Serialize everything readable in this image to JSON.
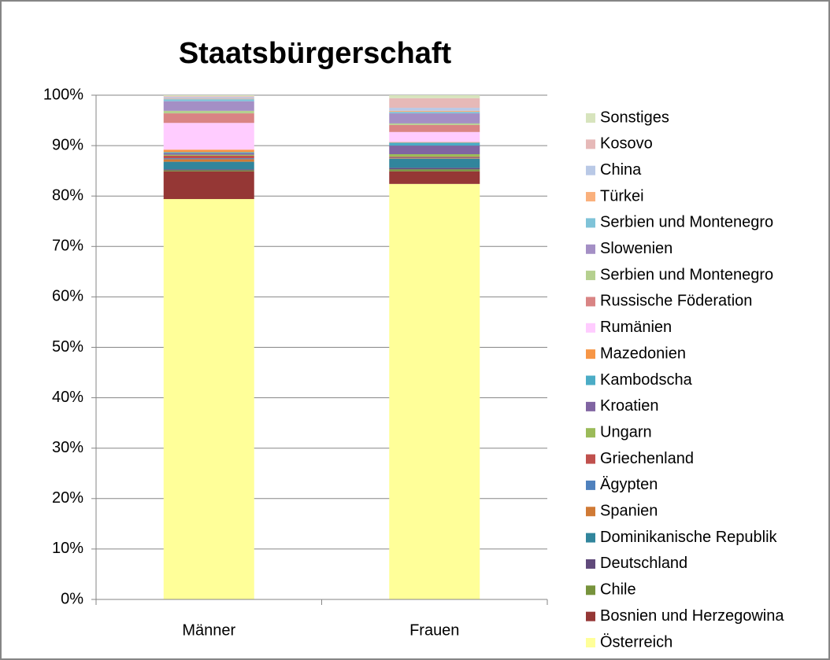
{
  "chart_data": {
    "type": "stacked_bar",
    "title": "Staatsbürgerschaft",
    "categories": [
      "Männer",
      "Frauen"
    ],
    "ylim": [
      0,
      100
    ],
    "yticks": [
      {
        "value": 0,
        "label": "0%"
      },
      {
        "value": 10,
        "label": "10%"
      },
      {
        "value": 20,
        "label": "20%"
      },
      {
        "value": 30,
        "label": "30%"
      },
      {
        "value": 40,
        "label": "40%"
      },
      {
        "value": 50,
        "label": "50%"
      },
      {
        "value": 60,
        "label": "60%"
      },
      {
        "value": 70,
        "label": "70%"
      },
      {
        "value": 80,
        "label": "80%"
      },
      {
        "value": 90,
        "label": "90%"
      },
      {
        "value": 100,
        "label": "100%"
      }
    ],
    "grid": true,
    "legend": "right",
    "series": [
      {
        "name": "Österreich",
        "color": "#ffff99",
        "values": [
          79.4,
          82.4
        ]
      },
      {
        "name": "Bosnien und Herzegowina",
        "color": "#953735",
        "values": [
          5.5,
          2.5
        ]
      },
      {
        "name": "Chile",
        "color": "#77933c",
        "values": [
          0.2,
          0.4
        ]
      },
      {
        "name": "Deutschland",
        "color": "#604a7b",
        "values": [
          0.2,
          0.3
        ]
      },
      {
        "name": "Dominikanische Republik",
        "color": "#31859c",
        "values": [
          1.5,
          1.8
        ]
      },
      {
        "name": "Spanien",
        "color": "#d07a35",
        "values": [
          0.5,
          0.1
        ]
      },
      {
        "name": "Ägypten",
        "color": "#4f81bd",
        "values": [
          0.2,
          0.1
        ]
      },
      {
        "name": "Griechenland",
        "color": "#c0504d",
        "values": [
          0.5,
          0.2
        ]
      },
      {
        "name": "Ungarn",
        "color": "#9bbb59",
        "values": [
          0.2,
          0.5
        ]
      },
      {
        "name": "Kroatien",
        "color": "#8064a2",
        "values": [
          0.3,
          1.7
        ]
      },
      {
        "name": "Kambodscha",
        "color": "#4bacc6",
        "values": [
          0.2,
          0.6
        ]
      },
      {
        "name": "Mazedonien",
        "color": "#f79646",
        "values": [
          0.5,
          0.1
        ]
      },
      {
        "name": "Rumänien",
        "color": "#ffccff",
        "values": [
          5.3,
          2.0
        ]
      },
      {
        "name": "Russische Föderation",
        "color": "#d98484",
        "values": [
          1.9,
          1.4
        ]
      },
      {
        "name": "Serbien und Montenegro",
        "color": "#b5d08f",
        "values": [
          0.5,
          0.3
        ]
      },
      {
        "name": "Slowenien",
        "color": "#a48fc5",
        "values": [
          1.9,
          2.0
        ]
      },
      {
        "name": "Serbien und Montenegro",
        "color": "#7fc3d8",
        "values": [
          0.4,
          0.3
        ]
      },
      {
        "name": "Türkei",
        "color": "#fab07c",
        "values": [
          0.1,
          0.2
        ]
      },
      {
        "name": "China",
        "color": "#b9c9e6",
        "values": [
          0.3,
          0.6
        ]
      },
      {
        "name": "Kosovo",
        "color": "#e6b9b8",
        "values": [
          0.2,
          1.9
        ]
      },
      {
        "name": "Sonstiges",
        "color": "#d7e4bd",
        "values": [
          0.2,
          0.6
        ]
      }
    ]
  }
}
